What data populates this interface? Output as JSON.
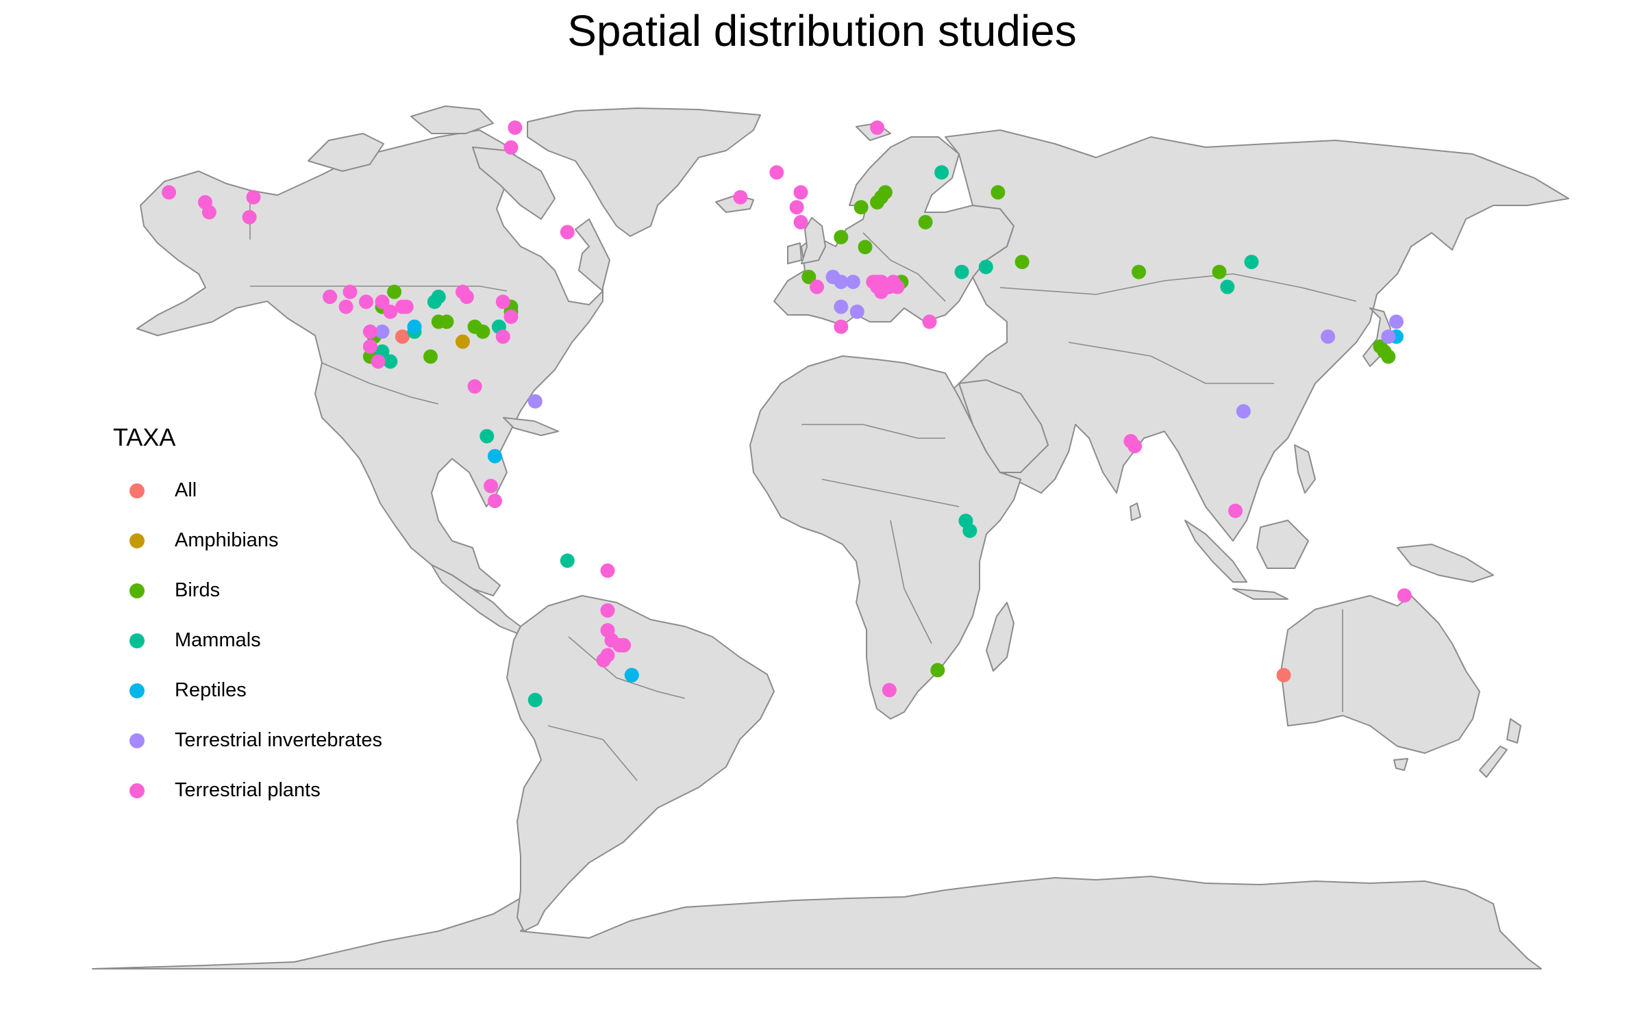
{
  "title": "Spatial distribution studies",
  "legend": {
    "title": "TAXA",
    "placement": "left",
    "items": [
      {
        "label": "All",
        "color": "#F8766D"
      },
      {
        "label": "Amphibians",
        "color": "#C49A00"
      },
      {
        "label": "Birds",
        "color": "#53B400"
      },
      {
        "label": "Mammals",
        "color": "#00C094"
      },
      {
        "label": "Reptiles",
        "color": "#00B6EB"
      },
      {
        "label": "Terrestrial invertebrates",
        "color": "#A58AFF"
      },
      {
        "label": "Terrestrial plants",
        "color": "#FB61D7"
      }
    ]
  },
  "map": {
    "projection": "equirectangular",
    "land_color": "#dedede",
    "border_color": "#8c8c8c"
  },
  "chart_data": {
    "type": "scatter",
    "title": "Spatial distribution studies",
    "xlabel": "",
    "ylabel": "",
    "xlim": [
      -180,
      180
    ],
    "ylim": [
      -90,
      84
    ],
    "grid": false,
    "legend_placement": "left",
    "series": [
      {
        "name": "All",
        "points": [
          [
            -103,
            37
          ],
          [
            116,
            -31
          ]
        ]
      },
      {
        "name": "Amphibians",
        "points": [
          [
            -88,
            36
          ],
          [
            -48,
            -25
          ]
        ]
      },
      {
        "name": "Birds",
        "points": [
          [
            -105,
            46
          ],
          [
            -108,
            43
          ],
          [
            -110,
            37
          ],
          [
            -111,
            33
          ],
          [
            -96,
            33
          ],
          [
            -94,
            40
          ],
          [
            -92,
            40
          ],
          [
            -85,
            39
          ],
          [
            -83,
            38
          ],
          [
            -76,
            43
          ],
          [
            -76,
            42
          ],
          [
            6,
            57
          ],
          [
            11,
            63
          ],
          [
            15,
            64
          ],
          [
            16,
            65
          ],
          [
            17,
            66
          ],
          [
            12,
            55
          ],
          [
            27,
            60
          ],
          [
            21,
            48
          ],
          [
            -2,
            49
          ],
          [
            45,
            66
          ],
          [
            51,
            52
          ],
          [
            80,
            50
          ],
          [
            100,
            50
          ],
          [
            30,
            -30
          ],
          [
            140,
            35
          ],
          [
            141,
            34
          ],
          [
            142,
            33
          ]
        ]
      },
      {
        "name": "Mammals",
        "points": [
          [
            -94,
            45
          ],
          [
            -95,
            44
          ],
          [
            -100,
            38
          ],
          [
            -108,
            34
          ],
          [
            -106,
            32
          ],
          [
            -79,
            39
          ],
          [
            -82,
            17
          ],
          [
            -62,
            -8
          ],
          [
            -70,
            -36
          ],
          [
            -46,
            -31
          ],
          [
            31,
            70
          ],
          [
            36,
            50
          ],
          [
            42,
            51
          ],
          [
            108,
            52
          ],
          [
            102,
            47
          ],
          [
            37,
            0
          ],
          [
            38,
            -2
          ]
        ]
      },
      {
        "name": "Reptiles",
        "points": [
          [
            -100,
            39
          ],
          [
            -80,
            13
          ],
          [
            -46,
            -31
          ],
          [
            144,
            37
          ]
        ]
      },
      {
        "name": "Terrestrial invertebrates",
        "points": [
          [
            -121,
            45
          ],
          [
            -108,
            38
          ],
          [
            -70,
            24
          ],
          [
            4,
            49
          ],
          [
            6,
            48
          ],
          [
            9,
            48
          ],
          [
            6,
            43
          ],
          [
            10,
            42
          ],
          [
            127,
            37
          ],
          [
            144,
            40
          ],
          [
            142,
            37
          ],
          [
            106,
            22
          ]
        ]
      },
      {
        "name": "Terrestrial plants",
        "points": [
          [
            -161,
            66
          ],
          [
            -152,
            64
          ],
          [
            -151,
            62
          ],
          [
            -140,
            65
          ],
          [
            -141,
            61
          ],
          [
            -75,
            79
          ],
          [
            -76,
            75
          ],
          [
            -62,
            58
          ],
          [
            -116,
            46
          ],
          [
            -121,
            45
          ],
          [
            -112,
            44
          ],
          [
            -117,
            43
          ],
          [
            -108,
            44
          ],
          [
            -103,
            43
          ],
          [
            -102,
            43
          ],
          [
            -106,
            42
          ],
          [
            -88,
            46
          ],
          [
            -87,
            45
          ],
          [
            -78,
            44
          ],
          [
            -76,
            41
          ],
          [
            -78,
            37
          ],
          [
            -111,
            38
          ],
          [
            -111,
            35
          ],
          [
            -109,
            32
          ],
          [
            -85,
            27
          ],
          [
            -81,
            7
          ],
          [
            -80,
            4
          ],
          [
            -52,
            -10
          ],
          [
            -52,
            -18
          ],
          [
            -52,
            -22
          ],
          [
            -51,
            -24
          ],
          [
            -49,
            -25
          ],
          [
            -48,
            -25
          ],
          [
            -52,
            -27
          ],
          [
            -53,
            -28
          ],
          [
            18,
            -34
          ],
          [
            -19,
            65
          ],
          [
            -10,
            70
          ],
          [
            -4,
            66
          ],
          [
            -5,
            63
          ],
          [
            -4,
            60
          ],
          [
            0,
            47
          ],
          [
            6,
            39
          ],
          [
            14,
            48
          ],
          [
            15,
            48
          ],
          [
            16,
            48
          ],
          [
            17,
            47
          ],
          [
            18,
            47
          ],
          [
            19,
            48
          ],
          [
            20,
            47
          ],
          [
            15,
            47
          ],
          [
            16,
            46
          ],
          [
            28,
            40
          ],
          [
            15,
            79
          ],
          [
            78,
            16
          ],
          [
            79,
            15
          ],
          [
            104,
            2
          ],
          [
            146,
            -15
          ]
        ]
      }
    ]
  }
}
